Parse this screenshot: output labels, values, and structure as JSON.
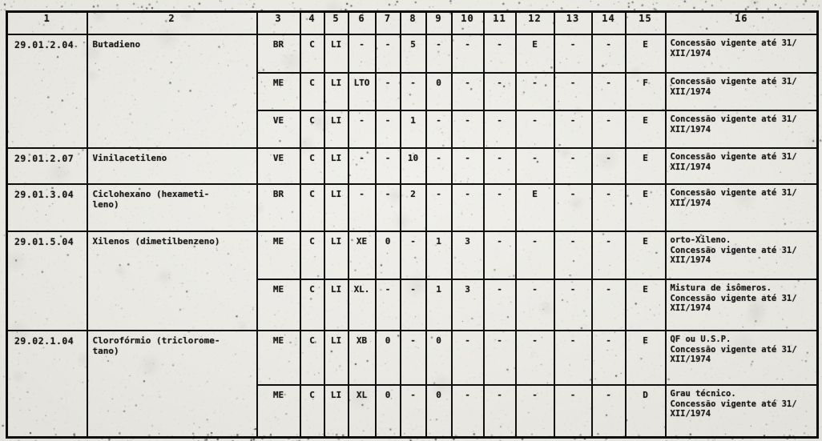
{
  "colors": {
    "paper": "#e9e8e3",
    "ink": "#141414",
    "line": "#101010"
  },
  "table": {
    "column_headers": [
      "1",
      "2",
      "3",
      "4",
      "5",
      "6",
      "7",
      "8",
      "9",
      "10",
      "11",
      "12",
      "13",
      "14",
      "15",
      "16"
    ],
    "rows": [
      {
        "code": "29.01.2.04",
        "product": "Butadieno",
        "product_rowspan": 3,
        "cells": [
          "BR",
          "C",
          "LI",
          "-",
          "-",
          "5",
          "-",
          "-",
          "-",
          "E",
          "-",
          "-",
          "E"
        ],
        "remark": "Concessão vigente até 31/\nXII/1974"
      },
      {
        "cells": [
          "ME",
          "C",
          "LI",
          "LTO",
          "-",
          "-",
          "0",
          "-",
          "-",
          "-",
          "-",
          "-",
          "F"
        ],
        "remark": "Concessão vigente até 31/\nXII/1974"
      },
      {
        "cells": [
          "VE",
          "C",
          "LI",
          "-",
          "-",
          "1",
          "-",
          "-",
          "-",
          "-",
          "-",
          "-",
          "E"
        ],
        "remark": "Concessão vigente até 31/\nXII/1974"
      },
      {
        "code": "29.01.2.07",
        "product": "Vinilacetileno",
        "product_rowspan": 1,
        "cells": [
          "VE",
          "C",
          "LI",
          "-",
          "-",
          "10",
          "-",
          "-",
          "-",
          "-",
          "-",
          "-",
          "E"
        ],
        "remark": "Concessão vigente até 31/\nXII/1974"
      },
      {
        "code": "29.01.3.04",
        "product": "Ciclohexano (hexameti-\nleno)",
        "product_rowspan": 1,
        "cells": [
          "BR",
          "C",
          "LI",
          "-",
          "-",
          "2",
          "-",
          "-",
          "-",
          "E",
          "-",
          "-",
          "E"
        ],
        "remark": "Concessão vigente até 31/\nXII/1974"
      },
      {
        "code": "29.01.5.04",
        "product": "Xilenos (dimetilbenzeno)",
        "product_rowspan": 2,
        "cells": [
          "ME",
          "C",
          "LI",
          "XE",
          "0",
          "-",
          "1",
          "3",
          "-",
          "-",
          "-",
          "-",
          "E"
        ],
        "remark": "orto-Xileno.\nConcessão vigente até 31/\nXII/1974"
      },
      {
        "cells": [
          "ME",
          "C",
          "LI",
          "XL.",
          "-",
          "-",
          "1",
          "3",
          "-",
          "-",
          "-",
          "-",
          "E"
        ],
        "remark": "Mistura de isômeros.\nConcessão vigente até 31/\nXII/1974"
      },
      {
        "code": "29.02.1.04",
        "product": "Clorofórmio (triclorome-\ntano)",
        "product_rowspan": 2,
        "cells": [
          "ME",
          "C",
          "LI",
          "XB",
          "0",
          "-",
          "0",
          "-",
          "-",
          "-",
          "-",
          "-",
          "E"
        ],
        "remark": "QF ou U.S.P.\nConcessão vigente até 31/\nXII/1974"
      },
      {
        "cells": [
          "ME",
          "C",
          "LI",
          "XL",
          "0",
          "-",
          "0",
          "-",
          "-",
          "-",
          "-",
          "-",
          "D"
        ],
        "remark": "Grau técnico.\nConcessão vigente até 31/\nXII/1974"
      }
    ]
  }
}
